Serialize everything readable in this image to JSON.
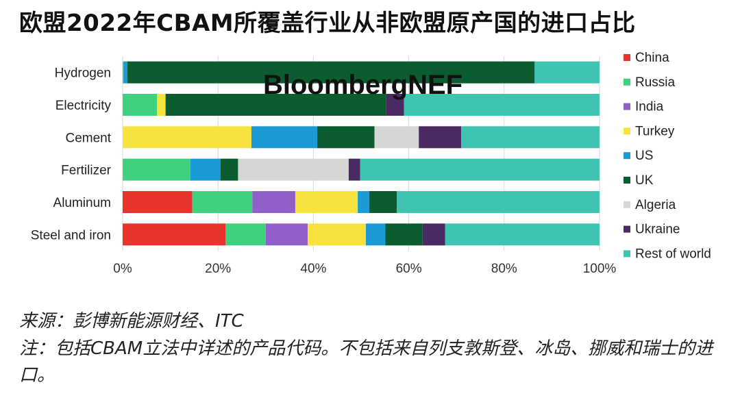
{
  "title": "欧盟2022年CBAM所覆盖行业从非欧盟原产国的进口占比",
  "watermark": "BloombergNEF",
  "source": "来源：彭博新能源财经、ITC",
  "note": "注：包括CBAM立法中详述的产品代码。不包括来自列支敦斯登、冰岛、挪威和瑞士的进口。",
  "chart_data": {
    "type": "bar",
    "orientation": "horizontal",
    "stacked": true,
    "title": "欧盟2022年CBAM所覆盖行业从非欧盟原产国的进口占比",
    "xlabel": "",
    "ylabel": "",
    "xlim": [
      0,
      100
    ],
    "x_ticks": [
      "0%",
      "20%",
      "40%",
      "60%",
      "80%",
      "100%"
    ],
    "grid": "vertical",
    "legend_position": "right",
    "categories": [
      "Hydrogen",
      "Electricity",
      "Cement",
      "Fertilizer",
      "Aluminum",
      "Steel and iron"
    ],
    "series": [
      {
        "name": "China",
        "color": "#e8332e",
        "values": [
          0,
          0,
          0,
          0,
          14.6,
          21.6
        ]
      },
      {
        "name": "Russia",
        "color": "#3fd17e",
        "values": [
          0.2,
          7.2,
          0,
          14.2,
          12.6,
          8.4
        ]
      },
      {
        "name": "India",
        "color": "#9060c8",
        "values": [
          0,
          0,
          0,
          0,
          9.0,
          8.8
        ]
      },
      {
        "name": "Turkey",
        "color": "#f8e23e",
        "values": [
          0,
          1.8,
          27.0,
          0,
          13.1,
          12.2
        ]
      },
      {
        "name": "US",
        "color": "#1a9bd8",
        "values": [
          0.8,
          0,
          13.8,
          6.3,
          2.4,
          4.1
        ]
      },
      {
        "name": "UK",
        "color": "#0b5c2e",
        "values": [
          85.4,
          46.2,
          12.0,
          3.7,
          5.8,
          7.8
        ]
      },
      {
        "name": "Algeria",
        "color": "#d6d6d6",
        "values": [
          0,
          0,
          9.3,
          23.2,
          0,
          0
        ]
      },
      {
        "name": "Ukraine",
        "color": "#4a2a63",
        "values": [
          0,
          3.8,
          8.9,
          2.4,
          0,
          4.7
        ]
      },
      {
        "name": "Rest of world",
        "color": "#3fc4b2",
        "values": [
          13.6,
          41.0,
          29.0,
          50.2,
          42.5,
          32.4
        ]
      }
    ]
  }
}
